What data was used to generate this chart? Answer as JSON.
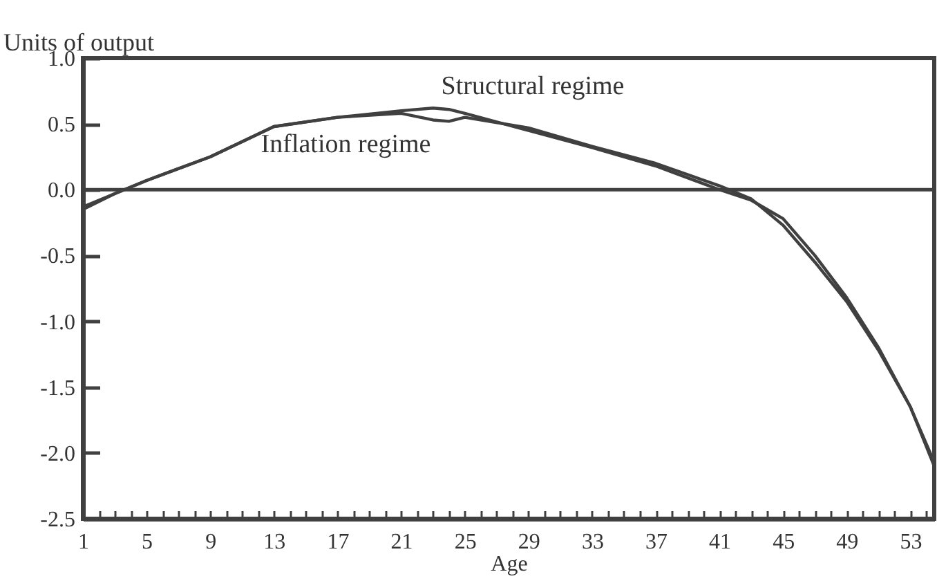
{
  "chart_data": {
    "type": "line",
    "xlabel": "Age",
    "ylabel": "Units of output",
    "x": [
      1,
      3,
      5,
      9,
      13,
      17,
      21,
      23,
      24,
      25,
      29,
      33,
      37,
      41,
      43,
      45,
      47,
      49,
      51,
      53,
      54.5
    ],
    "series": [
      {
        "name": "Structural regime",
        "color": "#404040",
        "values": [
          -0.15,
          -0.03,
          0.07,
          0.25,
          0.48,
          0.55,
          0.6,
          0.62,
          0.61,
          0.58,
          0.45,
          0.32,
          0.18,
          0.0,
          -0.08,
          -0.22,
          -0.5,
          -0.82,
          -1.2,
          -1.65,
          -2.1
        ]
      },
      {
        "name": "Inflation regime",
        "color": "#404040",
        "values": [
          -0.13,
          -0.03,
          0.07,
          0.25,
          0.48,
          0.55,
          0.58,
          0.53,
          0.52,
          0.55,
          0.47,
          0.33,
          0.2,
          0.03,
          -0.07,
          -0.27,
          -0.55,
          -0.85,
          -1.22,
          -1.65,
          -2.07
        ]
      }
    ],
    "xlim": [
      1,
      54.5
    ],
    "xticks": [
      1,
      {
        "value": 2,
        "label": null
      },
      {
        "value": 3,
        "label": null
      },
      {
        "value": 4,
        "label": null
      },
      5,
      {
        "value": 6,
        "label": null
      },
      {
        "value": 7,
        "label": null
      },
      {
        "value": 8,
        "label": null
      },
      9,
      {
        "value": 10,
        "label": null
      },
      {
        "value": 11,
        "label": null
      },
      {
        "value": 12,
        "label": null
      },
      13,
      {
        "value": 14,
        "label": null
      },
      {
        "value": 15,
        "label": null
      },
      {
        "value": 16,
        "label": null
      },
      17,
      {
        "value": 18,
        "label": null
      },
      {
        "value": 19,
        "label": null
      },
      {
        "value": 20,
        "label": null
      },
      21,
      {
        "value": 22,
        "label": null
      },
      {
        "value": 23,
        "label": null
      },
      {
        "value": 24,
        "label": null
      },
      25,
      {
        "value": 26,
        "label": null
      },
      {
        "value": 27,
        "label": null
      },
      {
        "value": 28,
        "label": null
      },
      29,
      {
        "value": 30,
        "label": null
      },
      {
        "value": 31,
        "label": null
      },
      {
        "value": 32,
        "label": null
      },
      33,
      {
        "value": 34,
        "label": null
      },
      {
        "value": 35,
        "label": null
      },
      {
        "value": 36,
        "label": null
      },
      37,
      {
        "value": 38,
        "label": null
      },
      {
        "value": 39,
        "label": null
      },
      {
        "value": 40,
        "label": null
      },
      41,
      {
        "value": 42,
        "label": null
      },
      {
        "value": 43,
        "label": null
      },
      {
        "value": 44,
        "label": null
      },
      45,
      {
        "value": 46,
        "label": null
      },
      {
        "value": 47,
        "label": null
      },
      {
        "value": 48,
        "label": null
      },
      49,
      {
        "value": 50,
        "label": null
      },
      {
        "value": 51,
        "label": null
      },
      {
        "value": 52,
        "label": null
      },
      53,
      {
        "value": 54,
        "label": null
      }
    ],
    "ylim": [
      -2.5,
      1.0
    ],
    "yticks": [
      {
        "value": -2.5,
        "label": "-2.5"
      },
      {
        "value": -2.0,
        "label": "-2.0"
      },
      {
        "value": -1.5,
        "label": "-1.5"
      },
      {
        "value": -1.0,
        "label": "-1.0"
      },
      {
        "value": -0.5,
        "label": "-0.5"
      },
      {
        "value": 0,
        "label": "0.0"
      },
      {
        "value": 0.5,
        "label": "0.5"
      },
      {
        "value": 1.0,
        "label": "1.0"
      }
    ],
    "ref_lines": [
      {
        "axis": "y",
        "value": 0,
        "color": "#404040"
      }
    ],
    "grid": false,
    "marker": "none",
    "line_style": "solid"
  }
}
